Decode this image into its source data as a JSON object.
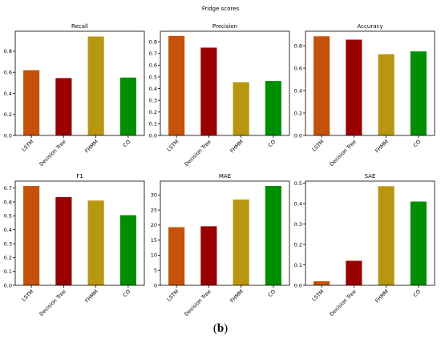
{
  "suptitle": "Fridge scores",
  "caption": {
    "open": "(",
    "letter": "b",
    "close": ")"
  },
  "colors": [
    "#c4520a",
    "#990000",
    "#b8960f",
    "#008f00"
  ],
  "chart_data": [
    {
      "type": "bar",
      "title": "Recall",
      "categories": [
        "LSTM",
        "Decision Tree",
        "FHMM",
        "CO"
      ],
      "values": [
        0.62,
        0.545,
        0.94,
        0.55
      ],
      "ylim": [
        0,
        0.99
      ],
      "yticks": [
        0.0,
        0.2,
        0.4,
        0.6,
        0.8
      ],
      "ytick_labels": [
        "0.0",
        "0.2",
        "0.4",
        "0.6",
        "0.8"
      ]
    },
    {
      "type": "bar",
      "title": "Precision",
      "categories": [
        "LSTM",
        "Decision Tree",
        "FHMM",
        "CO"
      ],
      "values": [
        0.85,
        0.75,
        0.455,
        0.465
      ],
      "ylim": [
        0,
        0.89
      ],
      "yticks": [
        0.0,
        0.1,
        0.2,
        0.3,
        0.4,
        0.5,
        0.6,
        0.7,
        0.8
      ],
      "ytick_labels": [
        "0.0",
        "0.1",
        "0.2",
        "0.3",
        "0.4",
        "0.5",
        "0.6",
        "0.7",
        "0.8"
      ]
    },
    {
      "type": "bar",
      "title": "Accuracy",
      "categories": [
        "LSTM",
        "Decision Tree",
        "FHMM",
        "CO"
      ],
      "values": [
        0.885,
        0.855,
        0.725,
        0.75
      ],
      "ylim": [
        0,
        0.93
      ],
      "yticks": [
        0.0,
        0.2,
        0.4,
        0.6,
        0.8
      ],
      "ytick_labels": [
        "0.0",
        "0.2",
        "0.4",
        "0.6",
        "0.8"
      ]
    },
    {
      "type": "bar",
      "title": "F1",
      "categories": [
        "LSTM",
        "Decision Tree",
        "FHMM",
        "CO"
      ],
      "values": [
        0.715,
        0.635,
        0.61,
        0.505
      ],
      "ylim": [
        0,
        0.75
      ],
      "yticks": [
        0.0,
        0.1,
        0.2,
        0.3,
        0.4,
        0.5,
        0.6,
        0.7
      ],
      "ytick_labels": [
        "0.0",
        "0.1",
        "0.2",
        "0.3",
        "0.4",
        "0.5",
        "0.6",
        "0.7"
      ]
    },
    {
      "type": "bar",
      "title": "MAE",
      "categories": [
        "LSTM",
        "Decision Tree",
        "FHMM",
        "CO"
      ],
      "values": [
        19.3,
        19.6,
        28.5,
        33.0
      ],
      "ylim": [
        0,
        34.6
      ],
      "yticks": [
        0,
        5,
        10,
        15,
        20,
        25,
        30
      ],
      "ytick_labels": [
        "0",
        "5",
        "10",
        "15",
        "20",
        "25",
        "30"
      ]
    },
    {
      "type": "bar",
      "title": "SAE",
      "categories": [
        "LSTM",
        "Decision Tree",
        "FHMM",
        "CO"
      ],
      "values": [
        0.02,
        0.12,
        0.485,
        0.41
      ],
      "ylim": [
        0,
        0.51
      ],
      "yticks": [
        0.0,
        0.1,
        0.2,
        0.3,
        0.4,
        0.5
      ],
      "ytick_labels": [
        "0.0",
        "0.1",
        "0.2",
        "0.3",
        "0.4",
        "0.5"
      ]
    }
  ]
}
